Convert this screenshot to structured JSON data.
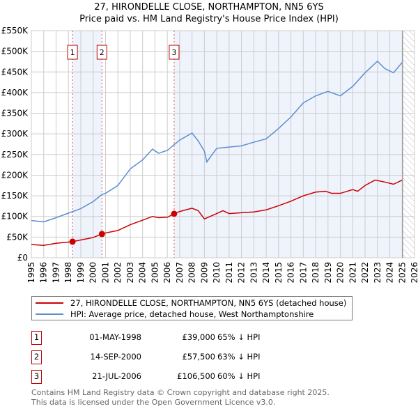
{
  "chart_data": {
    "type": "line",
    "title": "27, HIRONDELLE CLOSE, NORTHAMPTON, NN5 6YS",
    "subtitle": "Price paid vs. HM Land Registry's House Price Index (HPI)",
    "xlim": [
      1995,
      2026
    ],
    "ylim": [
      0,
      550000
    ],
    "x_ticks": [
      "1995",
      "1996",
      "1997",
      "1998",
      "1999",
      "2000",
      "2001",
      "2002",
      "2003",
      "2004",
      "2005",
      "2006",
      "2007",
      "2008",
      "2009",
      "2010",
      "2011",
      "2012",
      "2013",
      "2014",
      "2015",
      "2016",
      "2017",
      "2018",
      "2019",
      "2020",
      "2021",
      "2022",
      "2023",
      "2024",
      "2025",
      "2026"
    ],
    "y_ticks": [
      {
        "v": 0,
        "l": "£0"
      },
      {
        "v": 50000,
        "l": "£50K"
      },
      {
        "v": 100000,
        "l": "£100K"
      },
      {
        "v": 150000,
        "l": "£150K"
      },
      {
        "v": 200000,
        "l": "£200K"
      },
      {
        "v": 250000,
        "l": "£250K"
      },
      {
        "v": 300000,
        "l": "£300K"
      },
      {
        "v": 350000,
        "l": "£350K"
      },
      {
        "v": 400000,
        "l": "£400K"
      },
      {
        "v": 450000,
        "l": "£450K"
      },
      {
        "v": 500000,
        "l": "£500K"
      },
      {
        "v": 550000,
        "l": "£550K"
      }
    ],
    "grid": true,
    "series": [
      {
        "name": "27, HIRONDELLE CLOSE, NORTHAMPTON, NN5 6YS (detached house)",
        "color": "#cc0000",
        "x": [
          1995,
          1996,
          1997,
          1998,
          1998.33,
          1999,
          2000,
          2000.7,
          2001,
          2002,
          2003,
          2004,
          2004.8,
          2005.3,
          2006,
          2006.55,
          2007,
          2008,
          2008.5,
          2009,
          2010,
          2010.5,
          2011,
          2012,
          2013,
          2014,
          2015,
          2016,
          2017,
          2018,
          2018.8,
          2019.3,
          2020,
          2021,
          2021.4,
          2022,
          2022.8,
          2023.5,
          2024.3,
          2025
        ],
        "y": [
          32000,
          30000,
          35000,
          38000,
          39000,
          43000,
          49000,
          57500,
          60000,
          66000,
          80000,
          91000,
          100000,
          97000,
          98000,
          106500,
          112000,
          120000,
          114000,
          94000,
          107000,
          114000,
          107000,
          109000,
          111000,
          116000,
          126000,
          137000,
          150000,
          159000,
          161000,
          156000,
          156000,
          165000,
          161000,
          175000,
          188000,
          184000,
          178000,
          188000
        ]
      },
      {
        "name": "HPI: Average price, detached house, West Northamptonshire",
        "color": "#5b8fd0",
        "x": [
          1995,
          1996,
          1997,
          1998,
          1999,
          2000,
          2000.7,
          2001,
          2002,
          2003,
          2004,
          2004.8,
          2005.3,
          2006,
          2007,
          2008,
          2008.5,
          2009,
          2009.2,
          2009.5,
          2010,
          2011,
          2012,
          2013,
          2014,
          2015,
          2016,
          2017,
          2018,
          2019,
          2020,
          2021,
          2022,
          2023,
          2023.6,
          2024.3,
          2025
        ],
        "y": [
          90000,
          87000,
          97000,
          108000,
          119000,
          136000,
          153000,
          156000,
          175000,
          215000,
          237000,
          263000,
          253000,
          260000,
          285000,
          302000,
          283000,
          258000,
          232000,
          245000,
          265000,
          268000,
          271000,
          280000,
          288000,
          313000,
          341000,
          375000,
          392000,
          403000,
          392000,
          415000,
          448000,
          476000,
          458000,
          448000,
          473000
        ]
      }
    ],
    "transactions": [
      {
        "num": "1",
        "date": "01-MAY-1998",
        "x": 1998.33,
        "price": "£39,000",
        "value": 39000,
        "hpi": "65% ↓ HPI"
      },
      {
        "num": "2",
        "date": "14-SEP-2000",
        "x": 2000.71,
        "price": "£57,500",
        "value": 57500,
        "hpi": "63% ↓ HPI"
      },
      {
        "num": "3",
        "date": "21-JUL-2006",
        "x": 2006.55,
        "price": "£106,500",
        "value": 106500,
        "hpi": "60% ↓ HPI"
      }
    ],
    "hatch_from": 2025.03,
    "legend_placement": "below"
  },
  "footer": {
    "line1": "Contains HM Land Registry data © Crown copyright and database right 2025.",
    "line2": "This data is licensed under the Open Government Licence v3.0."
  }
}
